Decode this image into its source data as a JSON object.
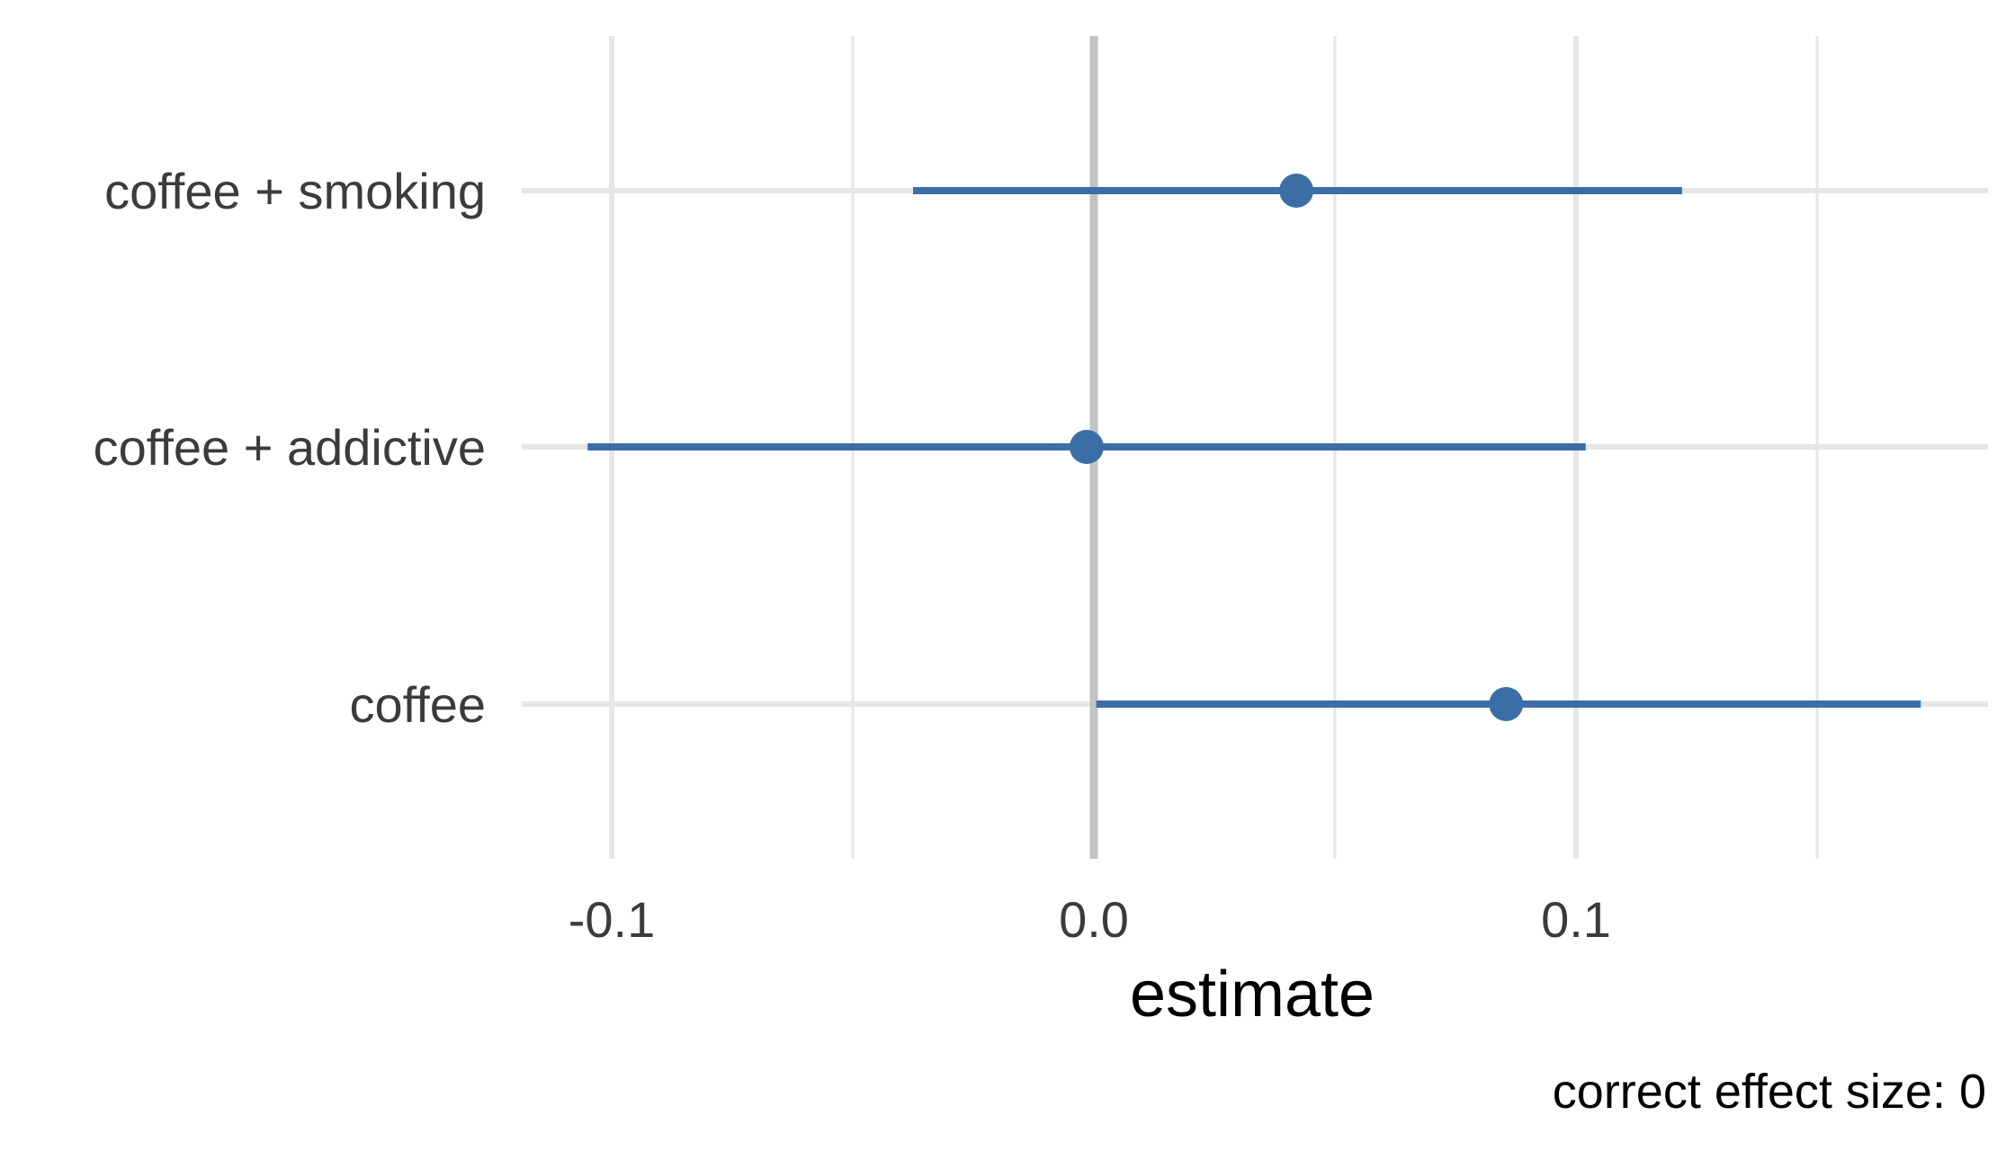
{
  "chart_data": {
    "type": "scatter",
    "subtype": "forest-plot",
    "title": "",
    "xlabel": "estimate",
    "ylabel": "",
    "caption": "correct effect size: 0",
    "xlim": [
      -0.118,
      0.186
    ],
    "x_ticks": [
      -0.1,
      0.0,
      0.1
    ],
    "x_tick_labels": [
      "-0.1",
      "0.0",
      "0.1"
    ],
    "x_minor_ticks": [
      -0.05,
      0.05,
      0.15
    ],
    "reference_line_x": 0,
    "grid": true,
    "legend": "none",
    "series": [
      {
        "categories": [
          "coffee",
          "coffee + addictive",
          "coffee + smoking"
        ],
        "estimate": [
          0.0855,
          -0.0015,
          0.042
        ],
        "conf_low": [
          0.0005,
          -0.105,
          -0.0375
        ],
        "conf_high": [
          0.1715,
          0.102,
          0.122
        ]
      }
    ],
    "colors": {
      "point": "#3b6ea5",
      "grid": "#e6e6e6",
      "reference": "#c3c3c3"
    }
  }
}
